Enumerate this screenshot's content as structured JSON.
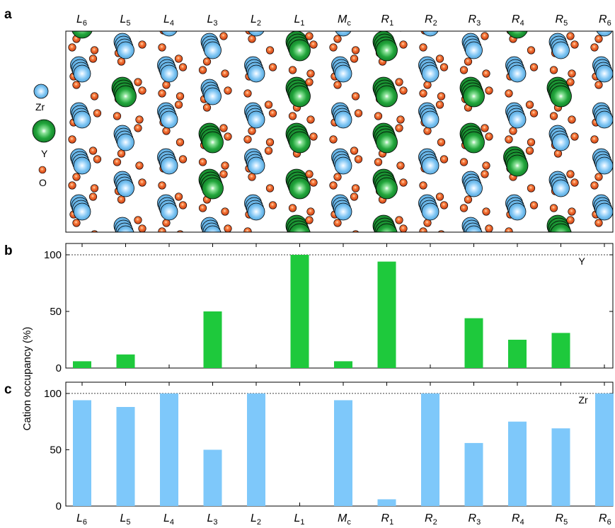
{
  "panels": {
    "a": "a",
    "b": "b",
    "c": "c"
  },
  "columns": [
    {
      "main": "L",
      "sub": "6"
    },
    {
      "main": "L",
      "sub": "5"
    },
    {
      "main": "L",
      "sub": "4"
    },
    {
      "main": "L",
      "sub": "3"
    },
    {
      "main": "L",
      "sub": "2"
    },
    {
      "main": "L",
      "sub": "1"
    },
    {
      "main": "M",
      "sub": "c"
    },
    {
      "main": "R",
      "sub": "1"
    },
    {
      "main": "R",
      "sub": "2"
    },
    {
      "main": "R",
      "sub": "3"
    },
    {
      "main": "R",
      "sub": "4"
    },
    {
      "main": "R",
      "sub": "5"
    },
    {
      "main": "R",
      "sub": "6"
    }
  ],
  "legend": {
    "zr": "Zr",
    "y": "Y",
    "o": "O"
  },
  "structure_image": {
    "description_colors": {
      "zr": "#7cc4f2",
      "y": "#1fa83a",
      "o": "#e8501e"
    },
    "y_rich_columns": [
      "L1",
      "R1"
    ],
    "mixed_columns": [
      "L3",
      "R3",
      "R4",
      "R5"
    ]
  },
  "chart_data": [
    {
      "type": "bar",
      "panel": "b",
      "categories": [
        "L6",
        "L5",
        "L4",
        "L3",
        "L2",
        "L1",
        "Mc",
        "R1",
        "R2",
        "R3",
        "R4",
        "R5",
        "R6"
      ],
      "series": [
        {
          "name": "Y",
          "values": [
            6,
            12,
            0,
            50,
            0,
            100,
            6,
            94,
            0,
            44,
            25,
            31,
            0
          ],
          "color": "#1ec93c"
        }
      ],
      "ylim": [
        0,
        110
      ],
      "yticks": [
        0,
        50,
        100
      ],
      "reference_line": 100,
      "series_label": "Y"
    },
    {
      "type": "bar",
      "panel": "c",
      "categories": [
        "L6",
        "L5",
        "L4",
        "L3",
        "L2",
        "L1",
        "Mc",
        "R1",
        "R2",
        "R3",
        "R4",
        "R5",
        "R6"
      ],
      "series": [
        {
          "name": "Zr",
          "values": [
            94,
            88,
            100,
            50,
            100,
            0,
            94,
            6,
            100,
            56,
            75,
            69,
            100
          ],
          "color": "#7ec8fa"
        }
      ],
      "ylim": [
        0,
        110
      ],
      "yticks": [
        0,
        50,
        100
      ],
      "reference_line": 100,
      "series_label": "Zr"
    }
  ],
  "shared_ylabel": "Cation occupancy (%)"
}
